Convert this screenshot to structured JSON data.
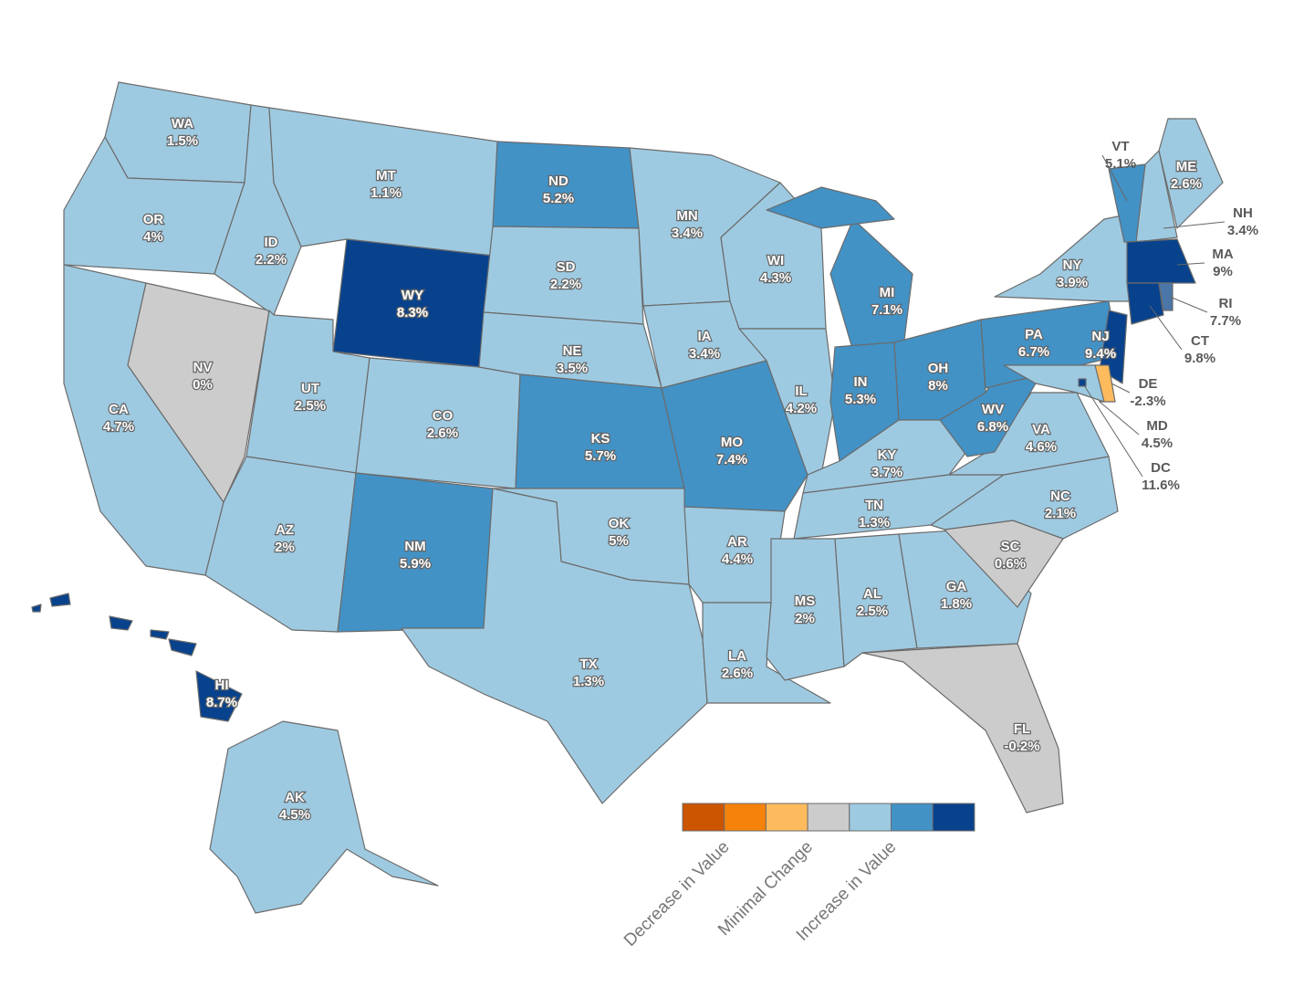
{
  "states": [
    {
      "abbr": "WA",
      "value": "1.5%",
      "color": "#9ecae1"
    },
    {
      "abbr": "OR",
      "value": "4%",
      "color": "#9ecae1"
    },
    {
      "abbr": "CA",
      "value": "4.7%",
      "color": "#9ecae1"
    },
    {
      "abbr": "NV",
      "value": "0%",
      "color": "#cccccc"
    },
    {
      "abbr": "ID",
      "value": "2.2%",
      "color": "#9ecae1"
    },
    {
      "abbr": "MT",
      "value": "1.1%",
      "color": "#9ecae1"
    },
    {
      "abbr": "WY",
      "value": "8.3%",
      "color": "#08428c"
    },
    {
      "abbr": "UT",
      "value": "2.5%",
      "color": "#9ecae1"
    },
    {
      "abbr": "AZ",
      "value": "2%",
      "color": "#9ecae1"
    },
    {
      "abbr": "CO",
      "value": "2.6%",
      "color": "#9ecae1"
    },
    {
      "abbr": "NM",
      "value": "5.9%",
      "color": "#4292c6"
    },
    {
      "abbr": "ND",
      "value": "5.2%",
      "color": "#4292c6"
    },
    {
      "abbr": "SD",
      "value": "2.2%",
      "color": "#9ecae1"
    },
    {
      "abbr": "NE",
      "value": "3.5%",
      "color": "#9ecae1"
    },
    {
      "abbr": "KS",
      "value": "5.7%",
      "color": "#4292c6"
    },
    {
      "abbr": "OK",
      "value": "5%",
      "color": "#9ecae1"
    },
    {
      "abbr": "TX",
      "value": "1.3%",
      "color": "#9ecae1"
    },
    {
      "abbr": "MN",
      "value": "3.4%",
      "color": "#9ecae1"
    },
    {
      "abbr": "IA",
      "value": "3.4%",
      "color": "#9ecae1"
    },
    {
      "abbr": "MO",
      "value": "7.4%",
      "color": "#4292c6"
    },
    {
      "abbr": "AR",
      "value": "4.4%",
      "color": "#9ecae1"
    },
    {
      "abbr": "LA",
      "value": "2.6%",
      "color": "#9ecae1"
    },
    {
      "abbr": "WI",
      "value": "4.3%",
      "color": "#9ecae1"
    },
    {
      "abbr": "IL",
      "value": "4.2%",
      "color": "#9ecae1"
    },
    {
      "abbr": "MI",
      "value": "7.1%",
      "color": "#4292c6"
    },
    {
      "abbr": "IN",
      "value": "5.3%",
      "color": "#4292c6"
    },
    {
      "abbr": "OH",
      "value": "8%",
      "color": "#4292c6"
    },
    {
      "abbr": "KY",
      "value": "3.7%",
      "color": "#9ecae1"
    },
    {
      "abbr": "TN",
      "value": "1.3%",
      "color": "#9ecae1"
    },
    {
      "abbr": "MS",
      "value": "2%",
      "color": "#9ecae1"
    },
    {
      "abbr": "AL",
      "value": "2.5%",
      "color": "#9ecae1"
    },
    {
      "abbr": "GA",
      "value": "1.8%",
      "color": "#9ecae1"
    },
    {
      "abbr": "FL",
      "value": "-0.2%",
      "color": "#cccccc"
    },
    {
      "abbr": "SC",
      "value": "0.6%",
      "color": "#cccccc"
    },
    {
      "abbr": "NC",
      "value": "2.1%",
      "color": "#9ecae1"
    },
    {
      "abbr": "VA",
      "value": "4.6%",
      "color": "#9ecae1"
    },
    {
      "abbr": "WV",
      "value": "6.8%",
      "color": "#4292c6"
    },
    {
      "abbr": "PA",
      "value": "6.7%",
      "color": "#4292c6"
    },
    {
      "abbr": "NY",
      "value": "3.9%",
      "color": "#9ecae1"
    },
    {
      "abbr": "NJ",
      "value": "9.4%",
      "color": "#08428c"
    },
    {
      "abbr": "DE",
      "value": "-2.3%",
      "color": "#fdbb5e"
    },
    {
      "abbr": "MD",
      "value": "4.5%",
      "color": "#9ecae1"
    },
    {
      "abbr": "DC",
      "value": "11.6%",
      "color": "#08428c"
    },
    {
      "abbr": "VT",
      "value": "5.1%",
      "color": "#4292c6"
    },
    {
      "abbr": "NH",
      "value": "3.4%",
      "color": "#9ecae1"
    },
    {
      "abbr": "ME",
      "value": "2.6%",
      "color": "#9ecae1"
    },
    {
      "abbr": "MA",
      "value": "9%",
      "color": "#08428c"
    },
    {
      "abbr": "CT",
      "value": "9.8%",
      "color": "#08428c"
    },
    {
      "abbr": "RI",
      "value": "7.7%",
      "color": "#4a77a8"
    },
    {
      "abbr": "HI",
      "value": "8.7%",
      "color": "#08428c"
    },
    {
      "abbr": "AK",
      "value": "4.5%",
      "color": "#9ecae1"
    }
  ],
  "legend": {
    "colors": [
      "#cc5500",
      "#f5820a",
      "#fdbb5e",
      "#cccccc",
      "#9ecae1",
      "#4292c6",
      "#08428c"
    ],
    "labels": [
      "Decrease in Value",
      "Minimal Change",
      "Increase in Value"
    ]
  }
}
